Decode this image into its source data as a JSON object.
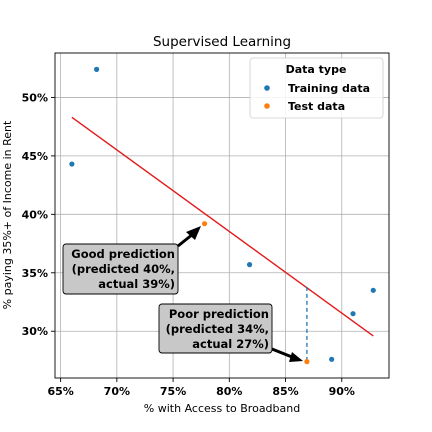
{
  "chart_data": {
    "type": "scatter",
    "title": "Supervised Learning",
    "xlabel": "% with Access to Broadband",
    "ylabel": "% paying 35%+ of Income in Rent",
    "xlim": [
      64.5,
      94.2
    ],
    "ylim": [
      26.0,
      53.8
    ],
    "x_ticks": [
      65,
      70,
      75,
      80,
      85,
      90
    ],
    "x_tick_labels": [
      "65%",
      "70%",
      "75%",
      "80%",
      "85%",
      "90%"
    ],
    "y_ticks": [
      30,
      35,
      40,
      45,
      50
    ],
    "y_tick_labels": [
      "30%",
      "35%",
      "40%",
      "45%",
      "50%"
    ],
    "grid": true,
    "legend": {
      "title": "Data type",
      "placement": "top-right",
      "entries": [
        {
          "label": "Training data",
          "color": "#1f77b4"
        },
        {
          "label": "Test data",
          "color": "#ff7f0e"
        }
      ]
    },
    "series": [
      {
        "name": "Training data",
        "color": "#1f77b4",
        "points": [
          {
            "x": 66.0,
            "y": 44.3
          },
          {
            "x": 68.2,
            "y": 52.4
          },
          {
            "x": 81.8,
            "y": 35.7
          },
          {
            "x": 89.1,
            "y": 27.6
          },
          {
            "x": 91.0,
            "y": 31.5
          },
          {
            "x": 92.8,
            "y": 33.5
          }
        ]
      },
      {
        "name": "Test data",
        "color": "#ff7f0e",
        "points": [
          {
            "x": 77.8,
            "y": 39.2
          },
          {
            "x": 86.9,
            "y": 27.4
          }
        ]
      }
    ],
    "regression_line": {
      "color": "#e31a1c",
      "x": [
        66.0,
        92.8
      ],
      "y": [
        48.3,
        29.6
      ]
    },
    "residual_line": {
      "color": "#1f77b4",
      "x": 86.9,
      "y_from": 33.8,
      "y_to": 27.4
    },
    "annotations": [
      {
        "lines": [
          "Good prediction",
          "(predicted 40%,",
          "actual 39%)"
        ],
        "target": {
          "x": 77.8,
          "y": 39.2
        }
      },
      {
        "lines": [
          "Poor prediction",
          "(predicted 34%,",
          "actual 27%)"
        ],
        "target": {
          "x": 86.9,
          "y": 27.4
        }
      }
    ]
  }
}
